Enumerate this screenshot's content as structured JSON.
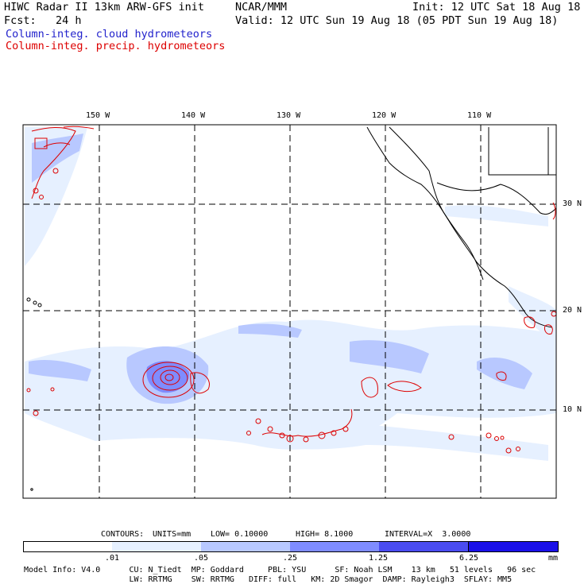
{
  "header": {
    "title_left": "HIWC Radar II 13km ARW-GFS init",
    "forecast": "Fcst:   24 h",
    "source": "NCAR/MMM",
    "init": "Init: 12 UTC Sat 18 Aug 18",
    "valid": "Valid: 12 UTC Sun 19 Aug 18 (05 PDT Sun 19 Aug 18)",
    "field1": "Column-integ. cloud hydrometeors",
    "field2": "Column-integ. precip. hydrometeors"
  },
  "map": {
    "lon_labels": [
      "150 W",
      "140 W",
      "130 W",
      "120 W",
      "110 W"
    ],
    "lat_labels": [
      "30 N",
      "20 N",
      "10 N"
    ],
    "colors": {
      "ocean": "#ffffff",
      "coast": "#000000",
      "grid": "#000000",
      "cloud_light": "#e6f0ff",
      "cloud_mid": "#b8c8ff",
      "cloud_dark": "#7f8cff",
      "precip_contour": "#dd0000"
    }
  },
  "contours": {
    "prefix": "CONTOURS:",
    "units": "UNITS=mm",
    "low": "LOW= 0.10000",
    "high": "HIGH= 8.1000",
    "interval": "INTERVAL=X  3.0000"
  },
  "colorbar": {
    "labels": [
      ".01",
      ".05",
      ".25",
      "1.25",
      "6.25"
    ],
    "units": "mm",
    "colors": [
      "#ffffff",
      "#e6f0ff",
      "#b8c8ff",
      "#7f8cff",
      "#4a4cf0",
      "#1a10e8"
    ]
  },
  "model_info": {
    "line1": "Model Info: V4.0      CU: N_Tiedt  MP: Goddard     PBL: YSU      SF: Noah LSM    13 km   51 levels   96 sec",
    "line2": "                      LW: RRTMG    SW: RRTMG   DIFF: full   KM: 2D Smagor  DAMP: Rayleigh3  SFLAY: MM5"
  }
}
